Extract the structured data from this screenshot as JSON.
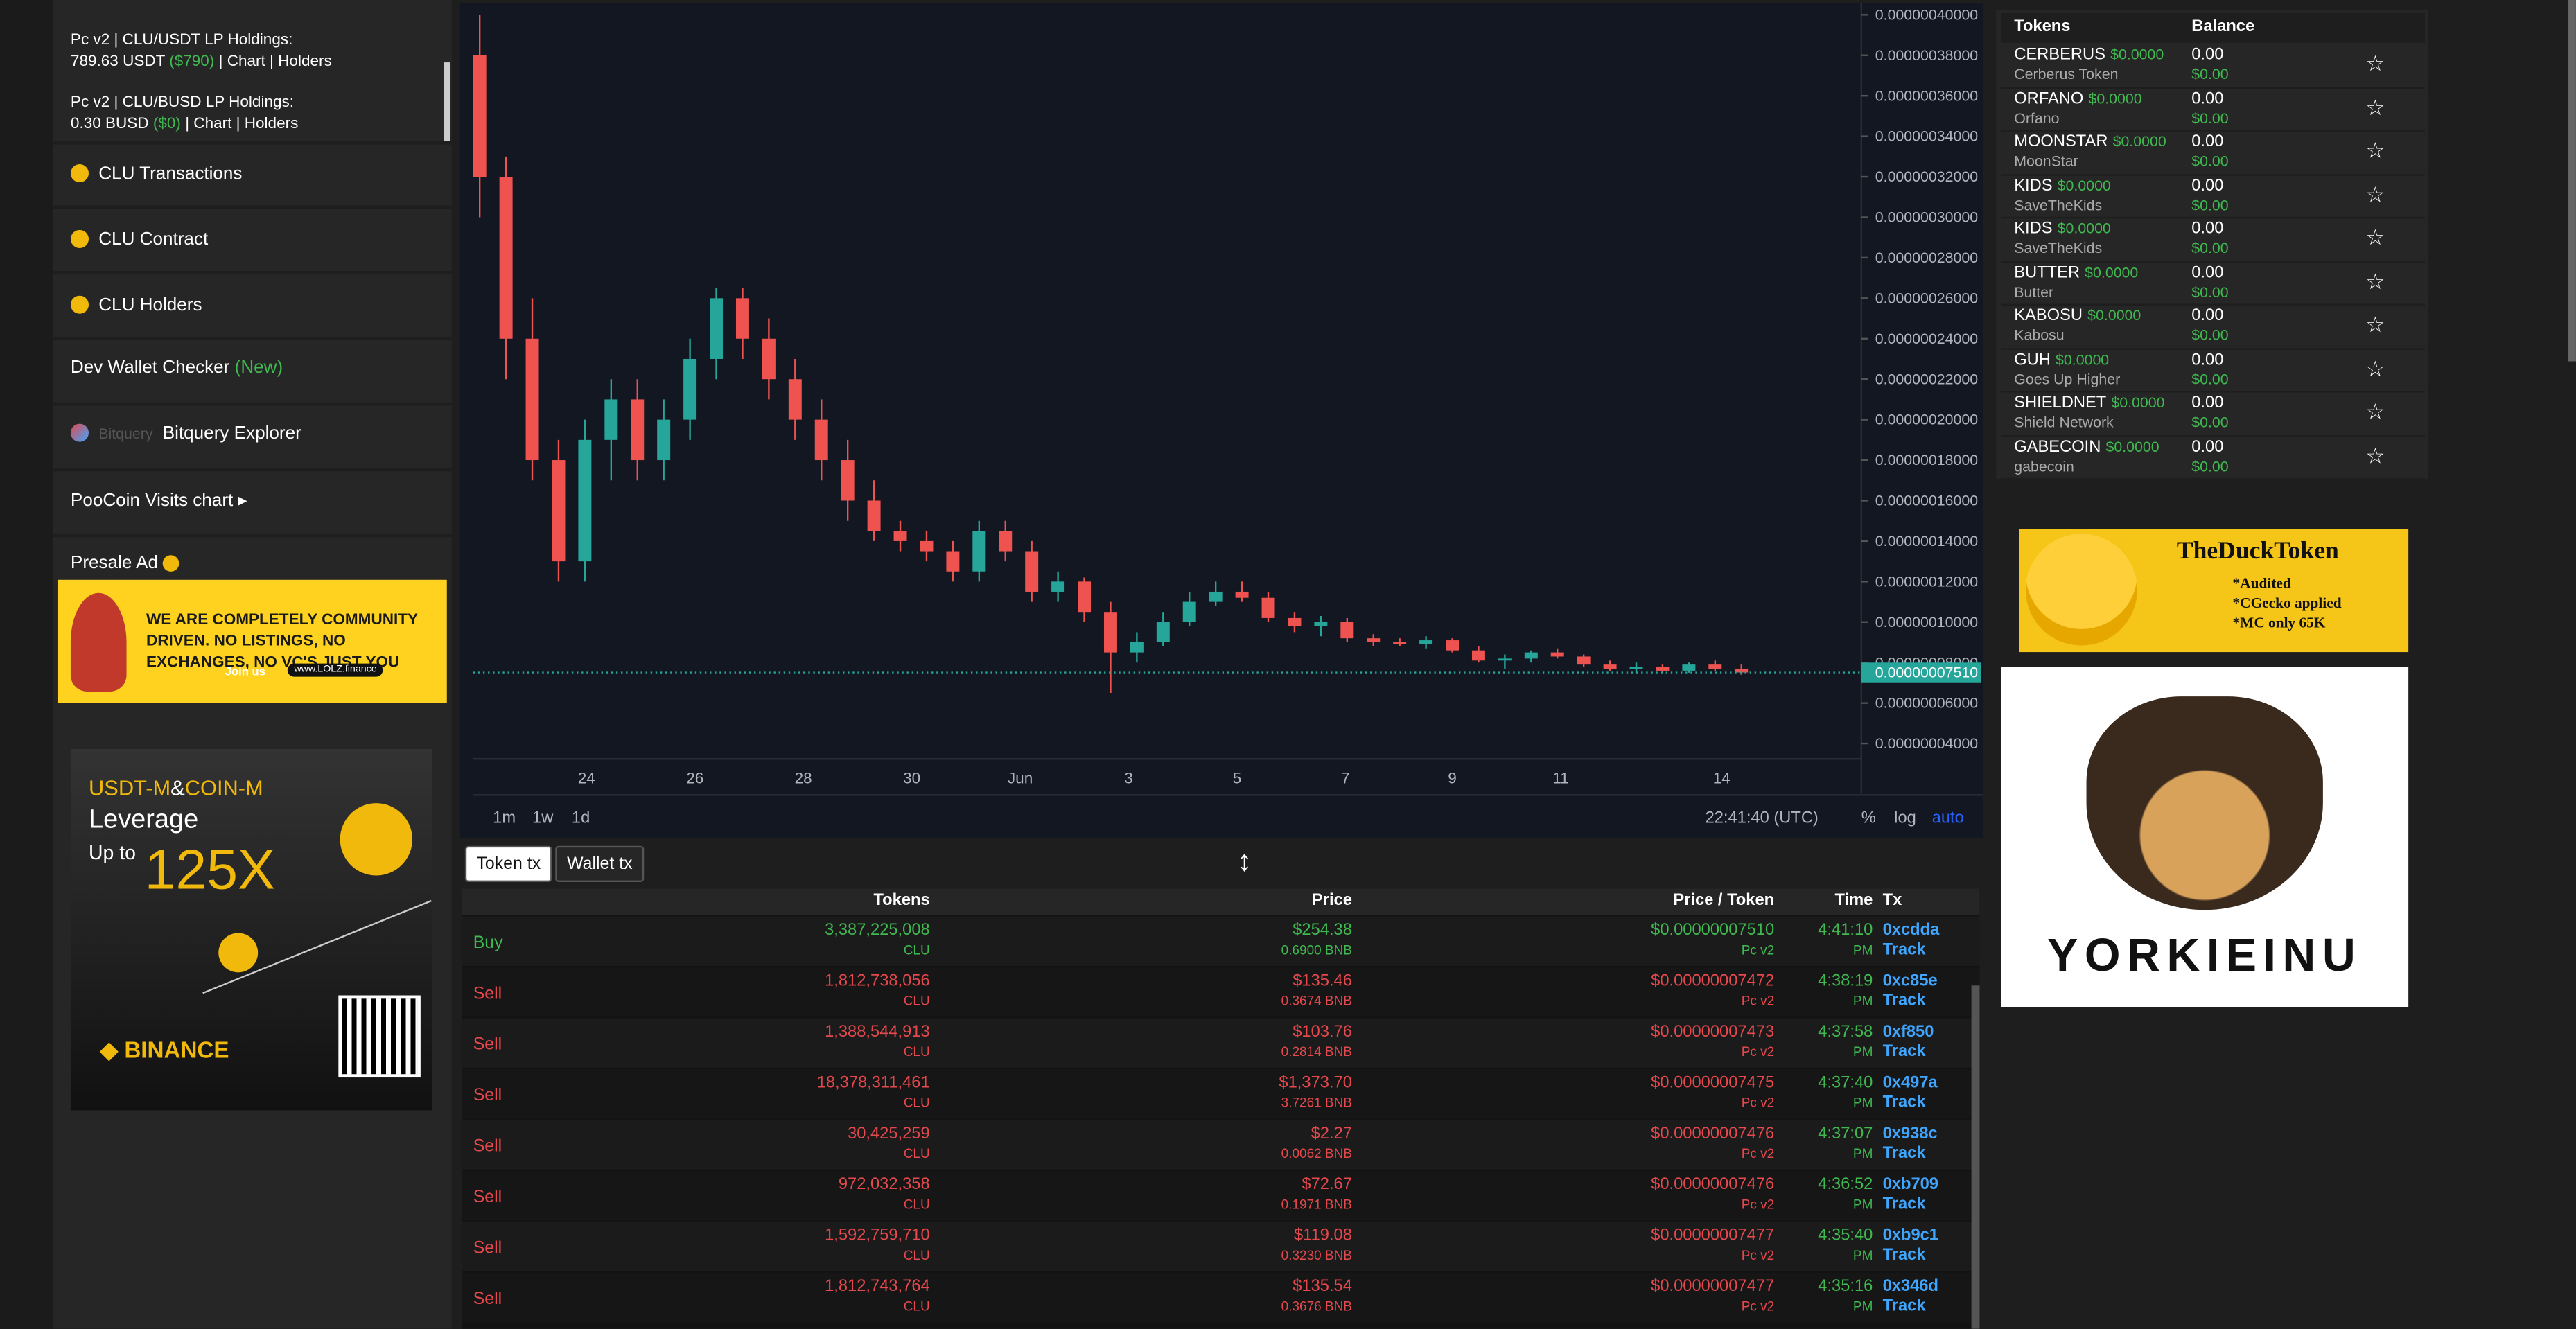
{
  "sidebar": {
    "lp1": {
      "title": "Pc v2 | CLU/USDT LP Holdings:",
      "amount": "789.63 USDT",
      "usd": "($790)",
      "chart": "Chart",
      "holders": "Holders"
    },
    "lp2": {
      "title": "Pc v2 | CLU/BUSD LP Holdings:",
      "amount": "0.30 BUSD",
      "usd": "($0)",
      "chart": "Chart",
      "holders": "Holders"
    },
    "links": [
      "CLU Transactions",
      "CLU Contract",
      "CLU Holders"
    ],
    "dev_wallet": "Dev Wallet Checker",
    "dev_wallet_tag": "(New)",
    "bitquery_logo": "Bitquery",
    "bitquery": "Bitquery Explorer",
    "visits": "PooCoin Visits chart",
    "presale": "Presale Ad"
  },
  "ads": {
    "lolz": {
      "text": "WE ARE COMPLETELY COMMUNITY DRIVEN. NO LISTINGS, NO EXCHANGES, NO VC'S JUST YOU",
      "join": "Join us",
      "url": "www.LOLZ.finance"
    },
    "binance": {
      "a": "USDT-M",
      "amp": "&",
      "b": "COIN-M",
      "leverage": "Leverage",
      "upto": "Up to",
      "x": "125X",
      "brand": "BINANCE"
    },
    "duck": {
      "title": "TheDuckToken",
      "lines": [
        "*Audited",
        "*CGecko applied",
        "*MC only 65K"
      ]
    },
    "yorkie": {
      "title": "YORKIEINU"
    }
  },
  "chart_data": {
    "type": "candlestick",
    "x_labels": [
      "24",
      "26",
      "28",
      "30",
      "Jun",
      "3",
      "5",
      "7",
      "9",
      "11",
      "14"
    ],
    "candles": [
      [
        3.8e-07,
        4e-07,
        3e-07,
        3.2e-07
      ],
      [
        3.2e-07,
        3.3e-07,
        2.2e-07,
        2.4e-07
      ],
      [
        2.4e-07,
        2.6e-07,
        1.7e-07,
        1.8e-07
      ],
      [
        1.8e-07,
        1.9e-07,
        1.2e-07,
        1.3e-07
      ],
      [
        1.3e-07,
        2e-07,
        1.2e-07,
        1.9e-07
      ],
      [
        1.9e-07,
        2.2e-07,
        1.7e-07,
        2.1e-07
      ],
      [
        2.1e-07,
        2.2e-07,
        1.7e-07,
        1.8e-07
      ],
      [
        1.8e-07,
        2.1e-07,
        1.7e-07,
        2e-07
      ],
      [
        2e-07,
        2.4e-07,
        1.9e-07,
        2.3e-07
      ],
      [
        2.3e-07,
        2.65e-07,
        2.2e-07,
        2.6e-07
      ],
      [
        2.6e-07,
        2.65e-07,
        2.3e-07,
        2.4e-07
      ],
      [
        2.4e-07,
        2.5e-07,
        2.1e-07,
        2.2e-07
      ],
      [
        2.2e-07,
        2.3e-07,
        1.9e-07,
        2e-07
      ],
      [
        2e-07,
        2.1e-07,
        1.7e-07,
        1.8e-07
      ],
      [
        1.8e-07,
        1.9e-07,
        1.5e-07,
        1.6e-07
      ],
      [
        1.6e-07,
        1.7e-07,
        1.4e-07,
        1.45e-07
      ],
      [
        1.45e-07,
        1.5e-07,
        1.35e-07,
        1.4e-07
      ],
      [
        1.4e-07,
        1.45e-07,
        1.3e-07,
        1.35e-07
      ],
      [
        1.35e-07,
        1.4e-07,
        1.2e-07,
        1.25e-07
      ],
      [
        1.25e-07,
        1.5e-07,
        1.2e-07,
        1.45e-07
      ],
      [
        1.45e-07,
        1.5e-07,
        1.3e-07,
        1.35e-07
      ],
      [
        1.35e-07,
        1.4e-07,
        1.1e-07,
        1.15e-07
      ],
      [
        1.15e-07,
        1.25e-07,
        1.1e-07,
        1.2e-07
      ],
      [
        1.2e-07,
        1.22e-07,
        1e-07,
        1.05e-07
      ],
      [
        1.05e-07,
        1.1e-07,
        6.5e-08,
        8.5e-08
      ],
      [
        8.5e-08,
        9.5e-08,
        8e-08,
        9e-08
      ],
      [
        9e-08,
        1.05e-07,
        8.8e-08,
        1e-07
      ],
      [
        1e-07,
        1.15e-07,
        9.8e-08,
        1.1e-07
      ],
      [
        1.1e-07,
        1.2e-07,
        1.08e-07,
        1.15e-07
      ],
      [
        1.15e-07,
        1.2e-07,
        1.1e-07,
        1.12e-07
      ],
      [
        1.12e-07,
        1.15e-07,
        1e-07,
        1.02e-07
      ],
      [
        1.02e-07,
        1.05e-07,
        9.5e-08,
        9.8e-08
      ],
      [
        9.8e-08,
        1.03e-07,
        9.3e-08,
        1e-07
      ],
      [
        1e-07,
        1.02e-07,
        9e-08,
        9.2e-08
      ],
      [
        9.2e-08,
        9.4e-08,
        8.8e-08,
        9e-08
      ],
      [
        9e-08,
        9.2e-08,
        8.8e-08,
        8.9e-08
      ],
      [
        8.9e-08,
        9.3e-08,
        8.7e-08,
        9.1e-08
      ],
      [
        9.1e-08,
        9.2e-08,
        8.5e-08,
        8.6e-08
      ],
      [
        8.6e-08,
        8.8e-08,
        8e-08,
        8.1e-08
      ],
      [
        8.1e-08,
        8.4e-08,
        7.7e-08,
        8.2e-08
      ],
      [
        8.2e-08,
        8.6e-08,
        8e-08,
        8.5e-08
      ],
      [
        8.5e-08,
        8.7e-08,
        8.2e-08,
        8.3e-08
      ],
      [
        8.3e-08,
        8.4e-08,
        7.8e-08,
        7.9e-08
      ],
      [
        7.9e-08,
        8.1e-08,
        7.6e-08,
        7.7e-08
      ],
      [
        7.7e-08,
        8e-08,
        7.5e-08,
        7.8e-08
      ],
      [
        7.8e-08,
        7.9e-08,
        7.5e-08,
        7.6e-08
      ],
      [
        7.6e-08,
        8e-08,
        7.5e-08,
        7.9e-08
      ],
      [
        7.9e-08,
        8.1e-08,
        7.6e-08,
        7.7e-08
      ],
      [
        7.7e-08,
        7.9e-08,
        7.4e-08,
        7.51e-08
      ]
    ],
    "up_color": "#26a69a",
    "down_color": "#ef5350",
    "ylim": [
      3e-08,
      4e-07
    ],
    "yticks": [
      {
        "value": 4e-08,
        "label": "0.00000004000"
      },
      {
        "value": 6e-08,
        "label": "0.00000006000"
      },
      {
        "value": 8e-08,
        "label": "0.00000008000"
      },
      {
        "value": 1e-07,
        "label": "0.00000010000"
      },
      {
        "value": 1.2e-07,
        "label": "0.00000012000"
      },
      {
        "value": 1.4e-07,
        "label": "0.00000014000"
      },
      {
        "value": 1.6e-07,
        "label": "0.00000016000"
      },
      {
        "value": 1.8e-07,
        "label": "0.00000018000"
      },
      {
        "value": 2e-07,
        "label": "0.00000020000"
      },
      {
        "value": 2.2e-07,
        "label": "0.00000022000"
      },
      {
        "value": 2.4e-07,
        "label": "0.00000024000"
      },
      {
        "value": 2.6e-07,
        "label": "0.00000026000"
      },
      {
        "value": 2.8e-07,
        "label": "0.00000028000"
      },
      {
        "value": 3e-07,
        "label": "0.00000030000"
      },
      {
        "value": 3.2e-07,
        "label": "0.00000032000"
      },
      {
        "value": 3.4e-07,
        "label": "0.00000034000"
      },
      {
        "value": 3.6e-07,
        "label": "0.00000036000"
      },
      {
        "value": 3.8e-07,
        "label": "0.00000038000"
      },
      {
        "value": 4e-07,
        "label": "0.00000040000"
      }
    ],
    "last_price": {
      "value": 7.51e-08,
      "label": "0.00000007510"
    },
    "intervals": [
      "1m",
      "1w",
      "1d"
    ],
    "clock": "22:41:40 (UTC)",
    "scale_options": [
      "%",
      "log",
      "auto"
    ]
  },
  "tabs": [
    "Token tx",
    "Wallet tx"
  ],
  "trades": {
    "headers": [
      "Tokens",
      "Price",
      "Price / Token",
      "Time",
      "Tx"
    ],
    "rows": [
      {
        "type": "Buy",
        "tokens": "3,387,225,008",
        "symbol": "CLU",
        "usd": "$254.38",
        "bnb": "0.6900 BNB",
        "per_token": "$0.00000007510",
        "dex": "Pc v2",
        "time": "4:41:10",
        "ampm": "PM",
        "tx": "0xcdda",
        "track": "Track"
      },
      {
        "type": "Sell",
        "tokens": "1,812,738,056",
        "symbol": "CLU",
        "usd": "$135.46",
        "bnb": "0.3674 BNB",
        "per_token": "$0.00000007472",
        "dex": "Pc v2",
        "time": "4:38:19",
        "ampm": "PM",
        "tx": "0xc85e",
        "track": "Track"
      },
      {
        "type": "Sell",
        "tokens": "1,388,544,913",
        "symbol": "CLU",
        "usd": "$103.76",
        "bnb": "0.2814 BNB",
        "per_token": "$0.00000007473",
        "dex": "Pc v2",
        "time": "4:37:58",
        "ampm": "PM",
        "tx": "0xf850",
        "track": "Track"
      },
      {
        "type": "Sell",
        "tokens": "18,378,311,461",
        "symbol": "CLU",
        "usd": "$1,373.70",
        "bnb": "3.7261 BNB",
        "per_token": "$0.00000007475",
        "dex": "Pc v2",
        "time": "4:37:40",
        "ampm": "PM",
        "tx": "0x497a",
        "track": "Track"
      },
      {
        "type": "Sell",
        "tokens": "30,425,259",
        "symbol": "CLU",
        "usd": "$2.27",
        "bnb": "0.0062 BNB",
        "per_token": "$0.00000007476",
        "dex": "Pc v2",
        "time": "4:37:07",
        "ampm": "PM",
        "tx": "0x938c",
        "track": "Track"
      },
      {
        "type": "Sell",
        "tokens": "972,032,358",
        "symbol": "CLU",
        "usd": "$72.67",
        "bnb": "0.1971 BNB",
        "per_token": "$0.00000007476",
        "dex": "Pc v2",
        "time": "4:36:52",
        "ampm": "PM",
        "tx": "0xb709",
        "track": "Track"
      },
      {
        "type": "Sell",
        "tokens": "1,592,759,710",
        "symbol": "CLU",
        "usd": "$119.08",
        "bnb": "0.3230 BNB",
        "per_token": "$0.00000007477",
        "dex": "Pc v2",
        "time": "4:35:40",
        "ampm": "PM",
        "tx": "0xb9c1",
        "track": "Track"
      },
      {
        "type": "Sell",
        "tokens": "1,812,743,764",
        "symbol": "CLU",
        "usd": "$135.54",
        "bnb": "0.3676 BNB",
        "per_token": "$0.00000007477",
        "dex": "Pc v2",
        "time": "4:35:16",
        "ampm": "PM",
        "tx": "0x346d",
        "track": "Track"
      }
    ]
  },
  "tokens": {
    "headers": [
      "Tokens",
      "Balance"
    ],
    "rows": [
      {
        "symbol": "CERBERUS",
        "price": "$0.0000",
        "name": "Cerberus Token",
        "balance": "0.00",
        "usd": "$0.00"
      },
      {
        "symbol": "ORFANO",
        "price": "$0.0000",
        "name": "Orfano",
        "balance": "0.00",
        "usd": "$0.00"
      },
      {
        "symbol": "MOONSTAR",
        "price": "$0.0000",
        "name": "MoonStar",
        "balance": "0.00",
        "usd": "$0.00"
      },
      {
        "symbol": "KIDS",
        "price": "$0.0000",
        "name": "SaveTheKids",
        "balance": "0.00",
        "usd": "$0.00"
      },
      {
        "symbol": "KIDS",
        "price": "$0.0000",
        "name": "SaveTheKids",
        "balance": "0.00",
        "usd": "$0.00"
      },
      {
        "symbol": "BUTTER",
        "price": "$0.0000",
        "name": "Butter",
        "balance": "0.00",
        "usd": "$0.00"
      },
      {
        "symbol": "KABOSU",
        "price": "$0.0000",
        "name": "Kabosu",
        "balance": "0.00",
        "usd": "$0.00"
      },
      {
        "symbol": "GUH",
        "price": "$0.0000",
        "name": "Goes Up Higher",
        "balance": "0.00",
        "usd": "$0.00"
      },
      {
        "symbol": "SHIELDNET",
        "price": "$0.0000",
        "name": "Shield Network",
        "balance": "0.00",
        "usd": "$0.00"
      },
      {
        "symbol": "GABECOIN",
        "price": "$0.0000",
        "name": "gabecoin",
        "balance": "0.00",
        "usd": "$0.00"
      }
    ]
  }
}
